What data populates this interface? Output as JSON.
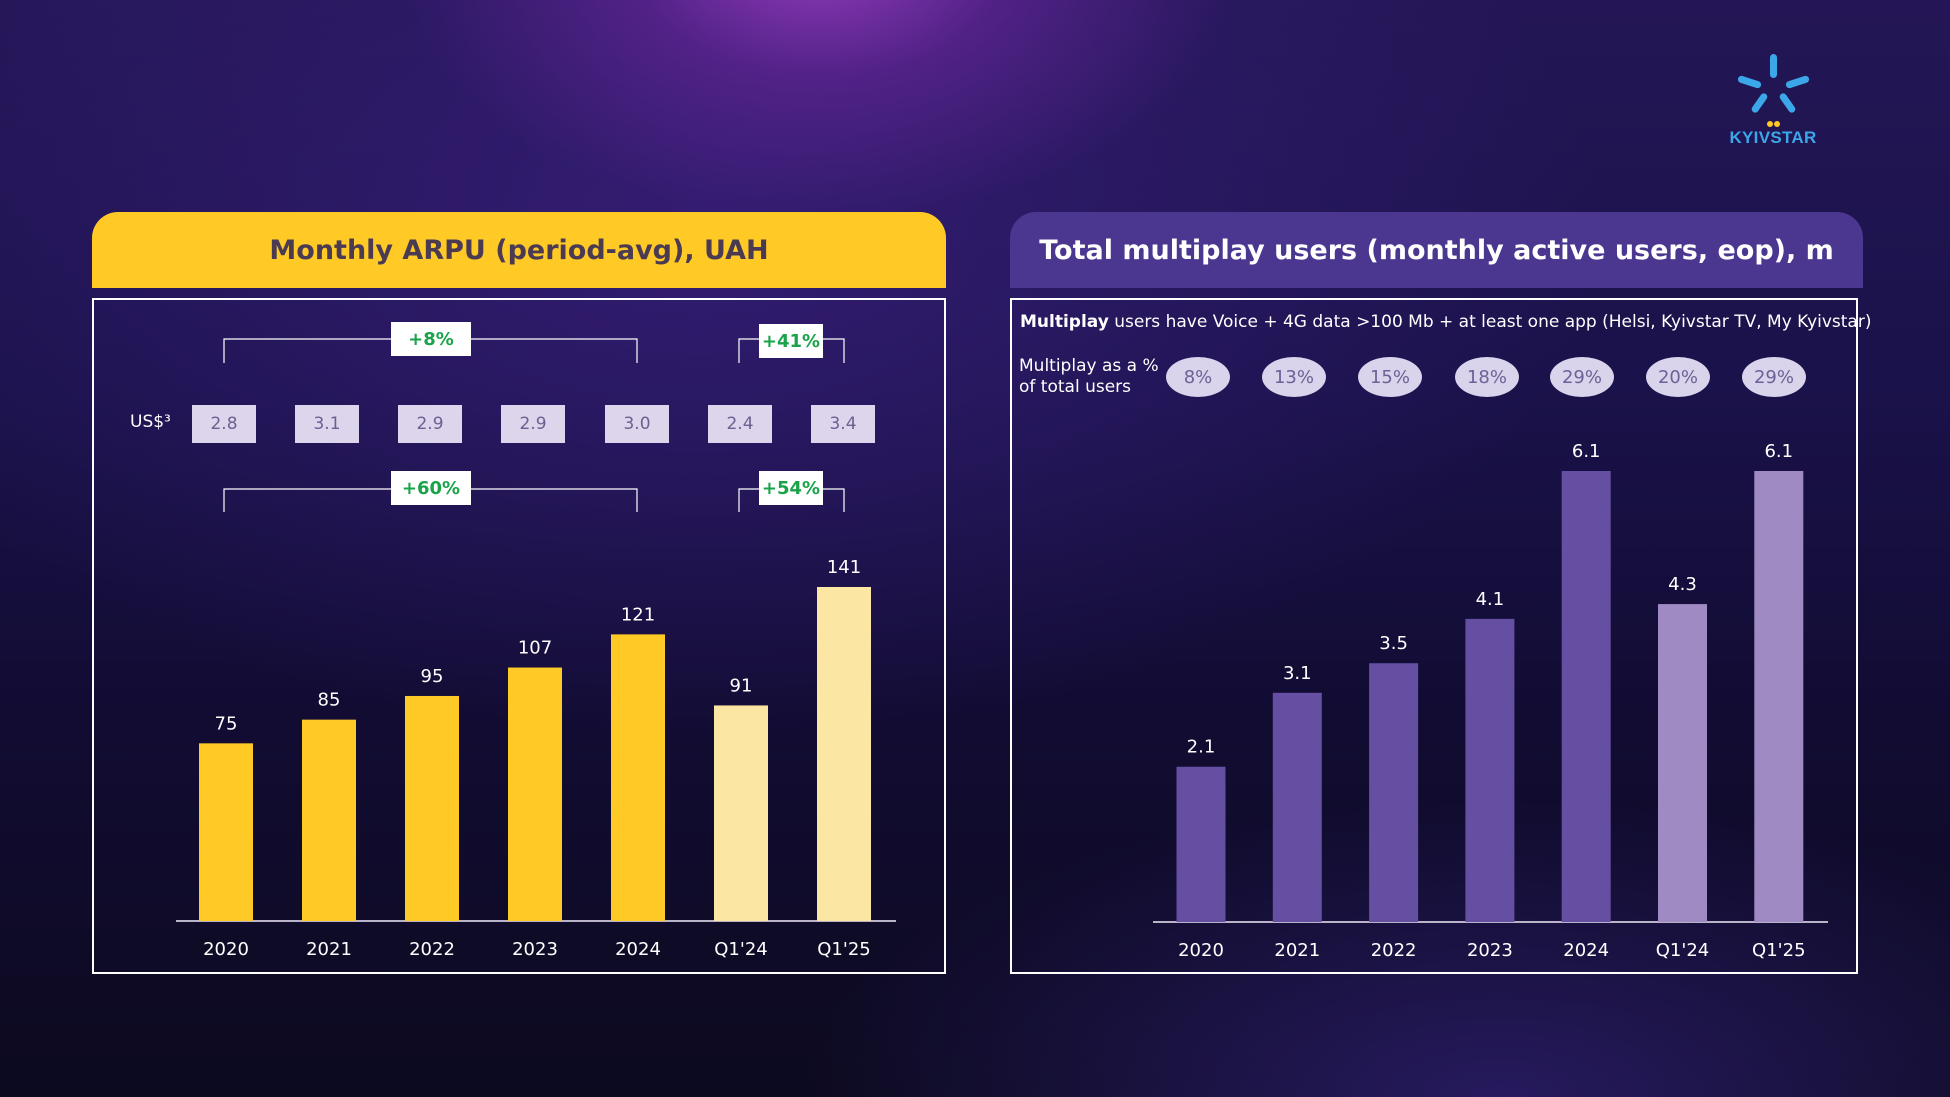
{
  "logo": {
    "text": "KYIVSTAR",
    "color": "#3ba7e8"
  },
  "left_panel": {
    "title": "Monthly ARPU (period-avg), UAH",
    "usd_label": "US$³",
    "usd_values": [
      "2.8",
      "3.1",
      "2.9",
      "2.9",
      "3.0",
      "2.4",
      "3.4"
    ],
    "growth_top": [
      "+8%",
      "+41%"
    ],
    "growth_bottom": [
      "+60%",
      "+54%"
    ]
  },
  "right_panel": {
    "title": "Total multiplay users (monthly active users, eop), m",
    "note_bold": "Multiplay",
    "note_rest": " users have Voice + 4G data >100 Mb + at least one app (Helsi, Kyivstar TV, My Kyivstar)",
    "pct_label_line1": "Multiplay as a %",
    "pct_label_line2": "of total users",
    "pct_values": [
      "8%",
      "13%",
      "15%",
      "18%",
      "29%",
      "20%",
      "29%"
    ]
  },
  "chart_data": [
    {
      "type": "bar",
      "title": "Monthly ARPU (period-avg), UAH",
      "categories": [
        "2020",
        "2021",
        "2022",
        "2023",
        "2024",
        "Q1'24",
        "Q1'25"
      ],
      "values": [
        75,
        85,
        95,
        107,
        121,
        91,
        141
      ],
      "colors": [
        "#ffc926",
        "#ffc926",
        "#ffc926",
        "#ffc926",
        "#ffc926",
        "#fce6a4",
        "#fce6a4"
      ],
      "ylim": [
        0,
        141
      ],
      "grid": false
    },
    {
      "type": "bar",
      "title": "Total multiplay users (monthly active users, eop), m",
      "categories": [
        "2020",
        "2021",
        "2022",
        "2023",
        "2024",
        "Q1'24",
        "Q1'25"
      ],
      "values": [
        2.1,
        3.1,
        3.5,
        4.1,
        6.1,
        4.3,
        6.1
      ],
      "colors": [
        "#654fa2",
        "#654fa2",
        "#654fa2",
        "#654fa2",
        "#654fa2",
        "#a08ac3",
        "#a08ac3"
      ],
      "ylim": [
        0,
        6.1
      ],
      "grid": false
    }
  ]
}
